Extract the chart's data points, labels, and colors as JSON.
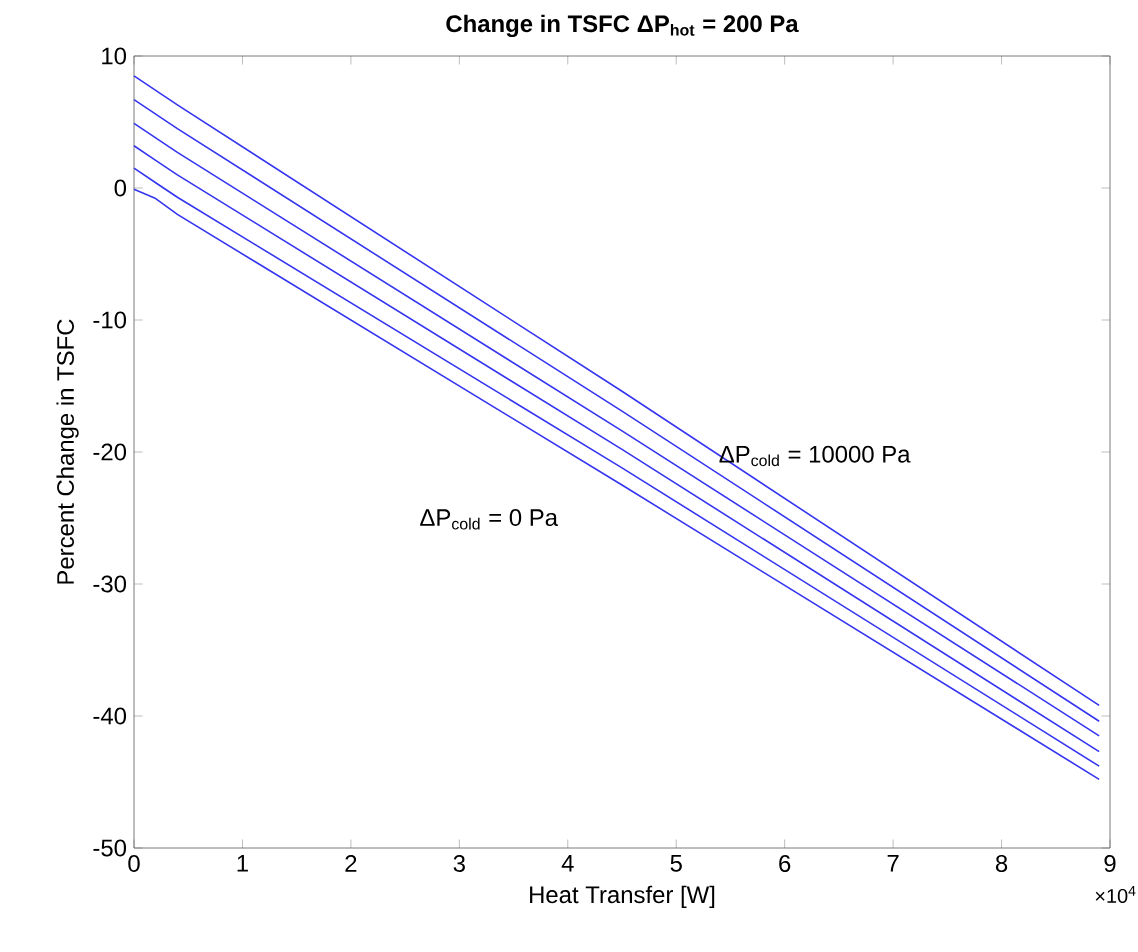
{
  "chart_data": {
    "type": "line",
    "title": "Change in TSFC ΔP$_{hot}$ = 200 Pa",
    "xlabel": "Heat Transfer [W]",
    "ylabel": "Percent Change in TSFC",
    "xlim": [
      0,
      9
    ],
    "xticks": [
      0,
      1,
      2,
      3,
      4,
      5,
      6,
      7,
      8,
      9
    ],
    "ylim": [
      -50,
      10
    ],
    "yticks": [
      -50,
      -40,
      -30,
      -20,
      -10,
      0,
      10
    ],
    "grid": false,
    "marker": "none",
    "line_style": "solid",
    "annotations": [
      "×10$^{4}$",
      {
        "text": "ΔP$_{cold}$ = 10000 Pa",
        "x": 5.37,
        "y": -20.3
      },
      "ΔP$_{cold}$ = 0 Pa"
    ],
    "x": [
      0,
      0.2,
      0.4,
      4.5,
      8.9
    ],
    "series": [
      {
        "color": "#3535f0",
        "values": [
          8.5,
          7.4,
          6.3,
          -15.4,
          -39.2
        ]
      },
      {
        "color": "#3535f0",
        "values": [
          6.7,
          5.6,
          4.5,
          -16.9,
          -40.4
        ]
      },
      {
        "color": "#3535f0",
        "values": [
          4.9,
          3.8,
          2.7,
          -18.4,
          -41.5
        ]
      },
      {
        "color": "#3535f0",
        "values": [
          3.2,
          2.1,
          1.0,
          -19.8,
          -42.7
        ]
      },
      {
        "color": "#3535f0",
        "values": [
          1.5,
          0.4,
          -0.7,
          -21.2,
          -43.8
        ]
      },
      {
        "color": "#3535f0",
        "values": [
          -0.1,
          -0.8,
          -2.0,
          -22.5,
          -44.8
        ]
      }
    ]
  }
}
